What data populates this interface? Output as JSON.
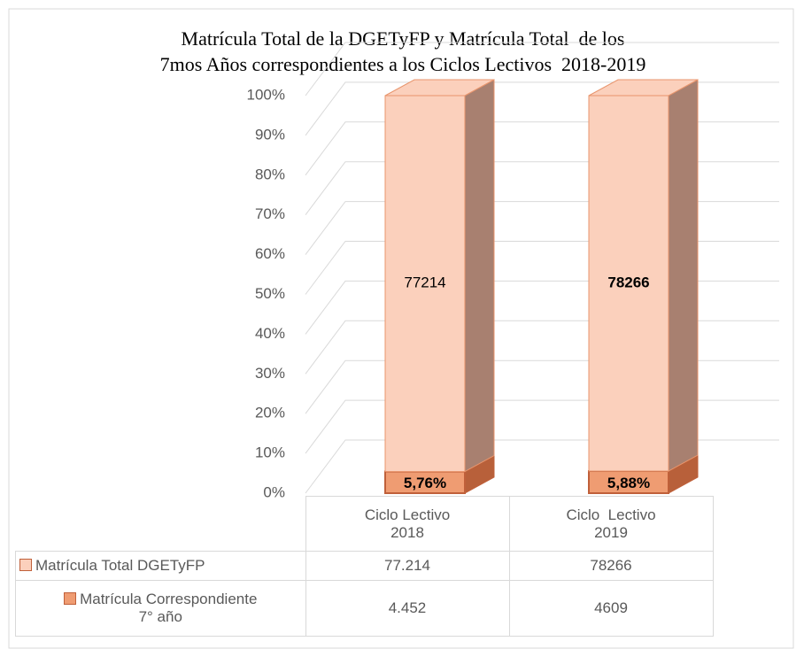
{
  "chart_data": {
    "type": "stacked_percent_bar_3d",
    "title": [
      "Matrícula Total de la DGETyFP y Matrícula Total  de los",
      "7mos Años correspondientes a los Ciclos Lectivos  2018-2019"
    ],
    "categories": [
      [
        "Ciclo Lectivo",
        "2018"
      ],
      [
        "Ciclo  Lectivo",
        "2019"
      ]
    ],
    "series": [
      {
        "name": "Matrícula Total DGETyFP",
        "color": "#fbd0bc",
        "values": [
          77214,
          78266
        ],
        "value_labels": [
          "77.214",
          "78266"
        ]
      },
      {
        "name": [
          "Matrícula Correspondiente",
          "7° año"
        ],
        "color": "#ef9c72",
        "values": [
          4452,
          4609
        ],
        "value_labels": [
          "4.452",
          "4609"
        ]
      }
    ],
    "annotations": [
      "5,76%",
      "5,88%"
    ],
    "ylim": [
      0,
      100
    ],
    "yticks": [
      {
        "value": 0,
        "label": "0%"
      },
      {
        "value": 10,
        "label": "10%"
      },
      {
        "value": 20,
        "label": "20%"
      },
      {
        "value": 30,
        "label": "30%"
      },
      {
        "value": 40,
        "label": "40%"
      },
      {
        "value": 50,
        "label": "50%"
      },
      {
        "value": 60,
        "label": "60%"
      },
      {
        "value": 70,
        "label": "70%"
      },
      {
        "value": 80,
        "label": "80%"
      },
      {
        "value": 90,
        "label": "90%"
      },
      {
        "value": 100,
        "label": "100%"
      }
    ],
    "grid": true
  }
}
